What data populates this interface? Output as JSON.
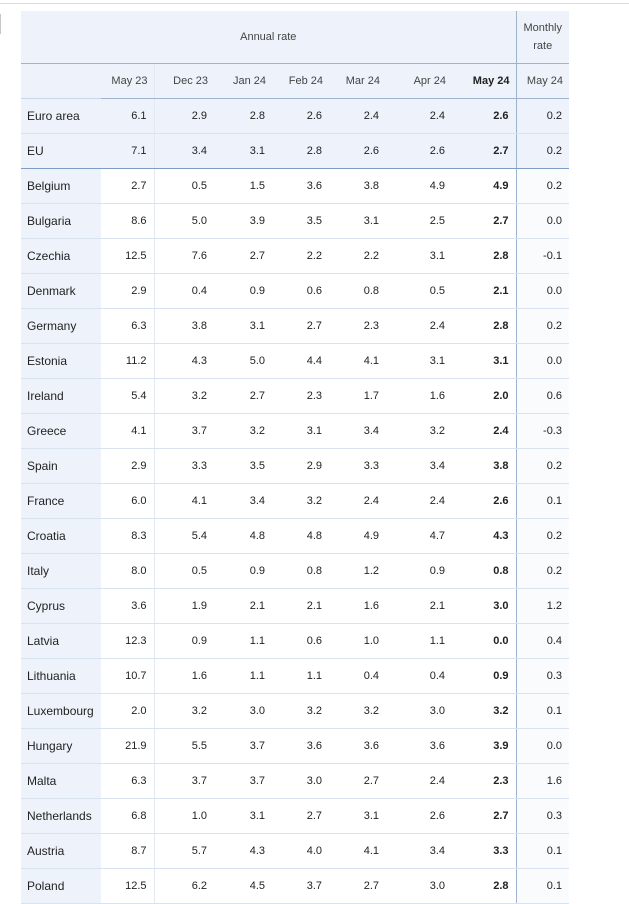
{
  "header": {
    "annual_rate": "Annual rate",
    "monthly_rate_line1": "Monthly",
    "monthly_rate_line2": "rate",
    "columns": [
      "May 23",
      "Dec 23",
      "Jan 24",
      "Feb 24",
      "Mar 24",
      "Apr 24",
      "May 24",
      "May 24"
    ]
  },
  "rows": [
    {
      "name": "Euro area",
      "v": [
        "6.1",
        "2.9",
        "2.8",
        "2.6",
        "2.4",
        "2.4",
        "2.6",
        "0.2"
      ]
    },
    {
      "name": "EU",
      "v": [
        "7.1",
        "3.4",
        "3.1",
        "2.8",
        "2.6",
        "2.6",
        "2.7",
        "0.2"
      ]
    },
    {
      "name": "Belgium",
      "v": [
        "2.7",
        "0.5",
        "1.5",
        "3.6",
        "3.8",
        "4.9",
        "4.9",
        "0.2"
      ]
    },
    {
      "name": "Bulgaria",
      "v": [
        "8.6",
        "5.0",
        "3.9",
        "3.5",
        "3.1",
        "2.5",
        "2.7",
        "0.0"
      ]
    },
    {
      "name": "Czechia",
      "v": [
        "12.5",
        "7.6",
        "2.7",
        "2.2",
        "2.2",
        "3.1",
        "2.8",
        "-0.1"
      ]
    },
    {
      "name": "Denmark",
      "v": [
        "2.9",
        "0.4",
        "0.9",
        "0.6",
        "0.8",
        "0.5",
        "2.1",
        "0.0"
      ]
    },
    {
      "name": "Germany",
      "v": [
        "6.3",
        "3.8",
        "3.1",
        "2.7",
        "2.3",
        "2.4",
        "2.8",
        "0.2"
      ]
    },
    {
      "name": "Estonia",
      "v": [
        "11.2",
        "4.3",
        "5.0",
        "4.4",
        "4.1",
        "3.1",
        "3.1",
        "0.0"
      ]
    },
    {
      "name": "Ireland",
      "v": [
        "5.4",
        "3.2",
        "2.7",
        "2.3",
        "1.7",
        "1.6",
        "2.0",
        "0.6"
      ]
    },
    {
      "name": "Greece",
      "v": [
        "4.1",
        "3.7",
        "3.2",
        "3.1",
        "3.4",
        "3.2",
        "2.4",
        "-0.3"
      ]
    },
    {
      "name": "Spain",
      "v": [
        "2.9",
        "3.3",
        "3.5",
        "2.9",
        "3.3",
        "3.4",
        "3.8",
        "0.2"
      ]
    },
    {
      "name": "France",
      "v": [
        "6.0",
        "4.1",
        "3.4",
        "3.2",
        "2.4",
        "2.4",
        "2.6",
        "0.1"
      ]
    },
    {
      "name": "Croatia",
      "v": [
        "8.3",
        "5.4",
        "4.8",
        "4.8",
        "4.9",
        "4.7",
        "4.3",
        "0.2"
      ]
    },
    {
      "name": "Italy",
      "v": [
        "8.0",
        "0.5",
        "0.9",
        "0.8",
        "1.2",
        "0.9",
        "0.8",
        "0.2"
      ]
    },
    {
      "name": "Cyprus",
      "v": [
        "3.6",
        "1.9",
        "2.1",
        "2.1",
        "1.6",
        "2.1",
        "3.0",
        "1.2"
      ]
    },
    {
      "name": "Latvia",
      "v": [
        "12.3",
        "0.9",
        "1.1",
        "0.6",
        "1.0",
        "1.1",
        "0.0",
        "0.4"
      ]
    },
    {
      "name": "Lithuania",
      "v": [
        "10.7",
        "1.6",
        "1.1",
        "1.1",
        "0.4",
        "0.4",
        "0.9",
        "0.3"
      ]
    },
    {
      "name": "Luxembourg",
      "v": [
        "2.0",
        "3.2",
        "3.0",
        "3.2",
        "3.2",
        "3.0",
        "3.2",
        "0.1"
      ]
    },
    {
      "name": "Hungary",
      "v": [
        "21.9",
        "5.5",
        "3.7",
        "3.6",
        "3.6",
        "3.6",
        "3.9",
        "0.0"
      ]
    },
    {
      "name": "Malta",
      "v": [
        "6.3",
        "3.7",
        "3.7",
        "3.0",
        "2.7",
        "2.4",
        "2.3",
        "1.6"
      ]
    },
    {
      "name": "Netherlands",
      "v": [
        "6.8",
        "1.0",
        "3.1",
        "2.7",
        "3.1",
        "2.6",
        "2.7",
        "0.3"
      ]
    },
    {
      "name": "Austria",
      "v": [
        "8.7",
        "5.7",
        "4.3",
        "4.0",
        "4.1",
        "3.4",
        "3.3",
        "0.1"
      ]
    },
    {
      "name": "Poland",
      "v": [
        "12.5",
        "6.2",
        "4.5",
        "3.7",
        "2.7",
        "3.0",
        "2.8",
        "0.1"
      ]
    }
  ]
}
